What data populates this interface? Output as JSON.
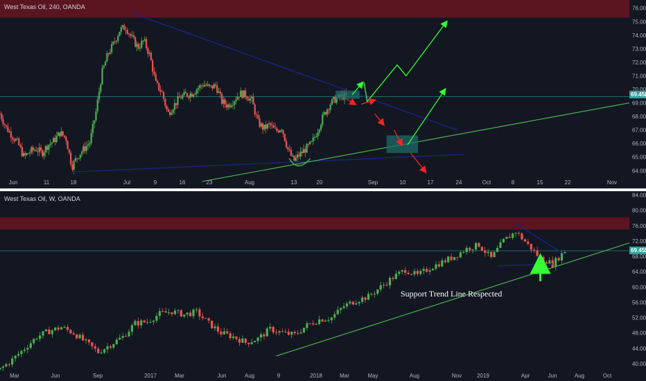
{
  "colors": {
    "background": "#131722",
    "divider": "#ffffff",
    "axis_text": "#b2b5be",
    "resistance_zone": "#5a1520",
    "up_candle": "#26a69a",
    "up_candle_bright": "#4caf50",
    "down_candle": "#ef5350",
    "blue_trend": "#1a237e",
    "green_trend": "#4caf50",
    "price_line": "#26a69a",
    "price_badge": "#26a69a",
    "arrow_up": "#33ff33",
    "arrow_down": "#ff2222",
    "box_fill": "#1e6b68"
  },
  "chart_data": [
    {
      "type": "candlestick",
      "title": "West Texas Oil, 240, OANDA",
      "timeframe": "240",
      "x_tick_labels": [
        "Jun",
        "11",
        "18",
        "Jul",
        "9",
        "16",
        "23",
        "Aug",
        "13",
        "20",
        "Sep",
        "10",
        "17",
        "24",
        "Oct",
        "8",
        "15",
        "22",
        "Nov"
      ],
      "y_tick_labels": [
        "64.000",
        "65.000",
        "66.000",
        "67.000",
        "68.000",
        "69.000",
        "70.000",
        "71.000",
        "72.000",
        "73.000",
        "74.000",
        "75.000",
        "76.000"
      ],
      "ylim": [
        63.4,
        76.6
      ],
      "current_price_label": "69.458",
      "current_price": 69.458,
      "resistance_zone": [
        75.3,
        77.0
      ],
      "series": [
        {
          "name": "",
          "ohlc_close_path": [
            [
              0,
              68.2
            ],
            [
              4,
              67.2
            ],
            [
              8,
              66.6
            ],
            [
              12,
              66.0
            ],
            [
              16,
              65.0
            ],
            [
              20,
              65.4
            ],
            [
              24,
              65.6
            ],
            [
              28,
              65.3
            ],
            [
              32,
              65.9
            ],
            [
              36,
              66.2
            ],
            [
              40,
              66.8
            ],
            [
              44,
              66.4
            ],
            [
              48,
              64.3
            ],
            [
              52,
              65.1
            ],
            [
              56,
              65.6
            ],
            [
              60,
              66.1
            ],
            [
              64,
              68.3
            ],
            [
              68,
              71.2
            ],
            [
              72,
              72.6
            ],
            [
              76,
              73.4
            ],
            [
              80,
              74.4
            ],
            [
              84,
              74.6
            ],
            [
              88,
              73.8
            ],
            [
              92,
              73.1
            ],
            [
              96,
              73.6
            ],
            [
              100,
              72.5
            ],
            [
              104,
              70.4
            ],
            [
              108,
              69.8
            ],
            [
              112,
              68.2
            ],
            [
              116,
              68.8
            ],
            [
              120,
              69.4
            ],
            [
              124,
              69.6
            ],
            [
              128,
              69.7
            ],
            [
              132,
              70.1
            ],
            [
              136,
              70.4
            ],
            [
              140,
              70.1
            ],
            [
              144,
              70.3
            ],
            [
              148,
              69.1
            ],
            [
              152,
              68.8
            ],
            [
              156,
              69.2
            ],
            [
              160,
              69.7
            ],
            [
              164,
              69.6
            ],
            [
              168,
              69.2
            ],
            [
              172,
              67.6
            ],
            [
              176,
              67.1
            ],
            [
              180,
              67.4
            ],
            [
              184,
              66.9
            ],
            [
              188,
              67.2
            ],
            [
              192,
              65.6
            ],
            [
              196,
              64.7
            ],
            [
              200,
              65.2
            ],
            [
              204,
              65.6
            ],
            [
              208,
              66.0
            ],
            [
              212,
              67.0
            ],
            [
              216,
              68.1
            ],
            [
              220,
              68.9
            ],
            [
              224,
              69.3
            ],
            [
              228,
              69.5
            ],
            [
              232,
              69.46
            ]
          ]
        }
      ],
      "trendlines": [
        {
          "name": "",
          "from": [
            89,
            75.6
          ],
          "to": [
            305,
            67.0
          ]
        },
        {
          "name": "",
          "from": [
            49,
            63.9
          ],
          "to": [
            310,
            65.2
          ]
        },
        {
          "name": "",
          "from": [
            135,
            63.2
          ],
          "to": [
            420,
            69.0
          ]
        }
      ],
      "highlight_boxes": [
        {
          "from": [
            224,
            69.3
          ],
          "to": [
            240,
            69.9
          ]
        },
        {
          "from": [
            258,
            65.3
          ],
          "to": [
            279,
            66.6
          ]
        }
      ],
      "arrows": [
        {
          "color": "up",
          "points": [
            [
              235,
              69.6
            ],
            [
              242,
              70.5
            ]
          ]
        },
        {
          "color": "up",
          "points": [
            [
              243,
              70.5
            ],
            [
              245,
              69.1
            ],
            [
              265,
              71.8
            ],
            [
              271,
              71.0
            ],
            [
              298,
              75.0
            ]
          ]
        },
        {
          "color": "up",
          "points": [
            [
              272,
              65.9
            ],
            [
              297,
              70.0
            ]
          ]
        },
        {
          "color": "down",
          "points": [
            [
              231,
              69.3
            ],
            [
              237,
              68.9
            ]
          ]
        },
        {
          "color": "down",
          "points": [
            [
              241,
              68.9
            ],
            [
              250,
              69.2
            ]
          ]
        },
        {
          "color": "down",
          "points": [
            [
              250,
              68.2
            ],
            [
              256,
              67.4
            ]
          ]
        },
        {
          "color": "down",
          "points": [
            [
              263,
              67.0
            ],
            [
              268,
              65.9
            ]
          ]
        },
        {
          "color": "down",
          "points": [
            [
              274,
              65.3
            ],
            [
              284,
              63.9
            ]
          ]
        }
      ]
    },
    {
      "type": "candlestick",
      "title": "West Texas Oil, W, OANDA",
      "timeframe": "W",
      "x_tick_labels": [
        "Mar",
        "Jun",
        "Sep",
        "2017",
        "Mar",
        "Jun",
        "Aug",
        "9",
        "2018",
        "Mar",
        "May",
        "Aug",
        "Nov",
        "2019",
        "Apr",
        "Jun",
        "Aug",
        "Oct"
      ],
      "y_tick_labels": [
        "40.000",
        "44.000",
        "48.000",
        "52.000",
        "56.000",
        "60.000",
        "64.000",
        "68.000",
        "72.000",
        "76.000",
        "80.000",
        "84.000"
      ],
      "ylim": [
        38.0,
        85.0
      ],
      "current_price_label": "69.458",
      "current_price": 69.458,
      "resistance_zone": [
        75.0,
        78.2
      ],
      "series": [
        {
          "name": "",
          "ohlc_close_path": [
            [
              0,
              38.5
            ],
            [
              4,
              41.0
            ],
            [
              8,
              44.0
            ],
            [
              12,
              47.0
            ],
            [
              16,
              48.5
            ],
            [
              20,
              49.5
            ],
            [
              24,
              48.0
            ],
            [
              28,
              45.5
            ],
            [
              32,
              43.0
            ],
            [
              36,
              45.0
            ],
            [
              40,
              47.0
            ],
            [
              44,
              50.5
            ],
            [
              48,
              51.0
            ],
            [
              52,
              53.0
            ],
            [
              56,
              53.6
            ],
            [
              60,
              52.8
            ],
            [
              64,
              53.5
            ],
            [
              68,
              50.5
            ],
            [
              72,
              48.0
            ],
            [
              76,
              47.0
            ],
            [
              80,
              45.5
            ],
            [
              84,
              46.5
            ],
            [
              88,
              49.0
            ],
            [
              92,
              48.0
            ],
            [
              96,
              47.5
            ],
            [
              100,
              50.0
            ],
            [
              104,
              51.5
            ],
            [
              108,
              52.0
            ],
            [
              112,
              55.0
            ],
            [
              116,
              56.5
            ],
            [
              120,
              57.5
            ],
            [
              124,
              60.0
            ],
            [
              128,
              62.5
            ],
            [
              132,
              64.5
            ],
            [
              136,
              63.0
            ],
            [
              140,
              65.0
            ],
            [
              144,
              66.5
            ],
            [
              148,
              68.0
            ],
            [
              152,
              70.0
            ],
            [
              156,
              71.0
            ],
            [
              160,
              67.5
            ],
            [
              164,
              72.0
            ],
            [
              168,
              74.5
            ],
            [
              172,
              71.0
            ],
            [
              176,
              67.5
            ],
            [
              180,
              66.0
            ],
            [
              184,
              69.46
            ]
          ]
        }
      ],
      "trendlines": [
        {
          "name": "",
          "from": [
            90,
            42.0
          ],
          "to": [
            205,
            71.5
          ]
        },
        {
          "name": "",
          "from": [
            162,
            65.5
          ],
          "to": [
            180,
            66.0
          ]
        },
        {
          "name": "",
          "from": [
            168,
            76.5
          ],
          "to": [
            184,
            68.5
          ]
        }
      ],
      "arrows": [
        {
          "color": "up",
          "points": [
            [
              176,
              61.5
            ],
            [
              176,
              64.5
            ]
          ]
        }
      ],
      "annotations": [
        {
          "text": "Support Trend Line Respected",
          "at": [
            176,
            56.5
          ]
        }
      ]
    }
  ]
}
